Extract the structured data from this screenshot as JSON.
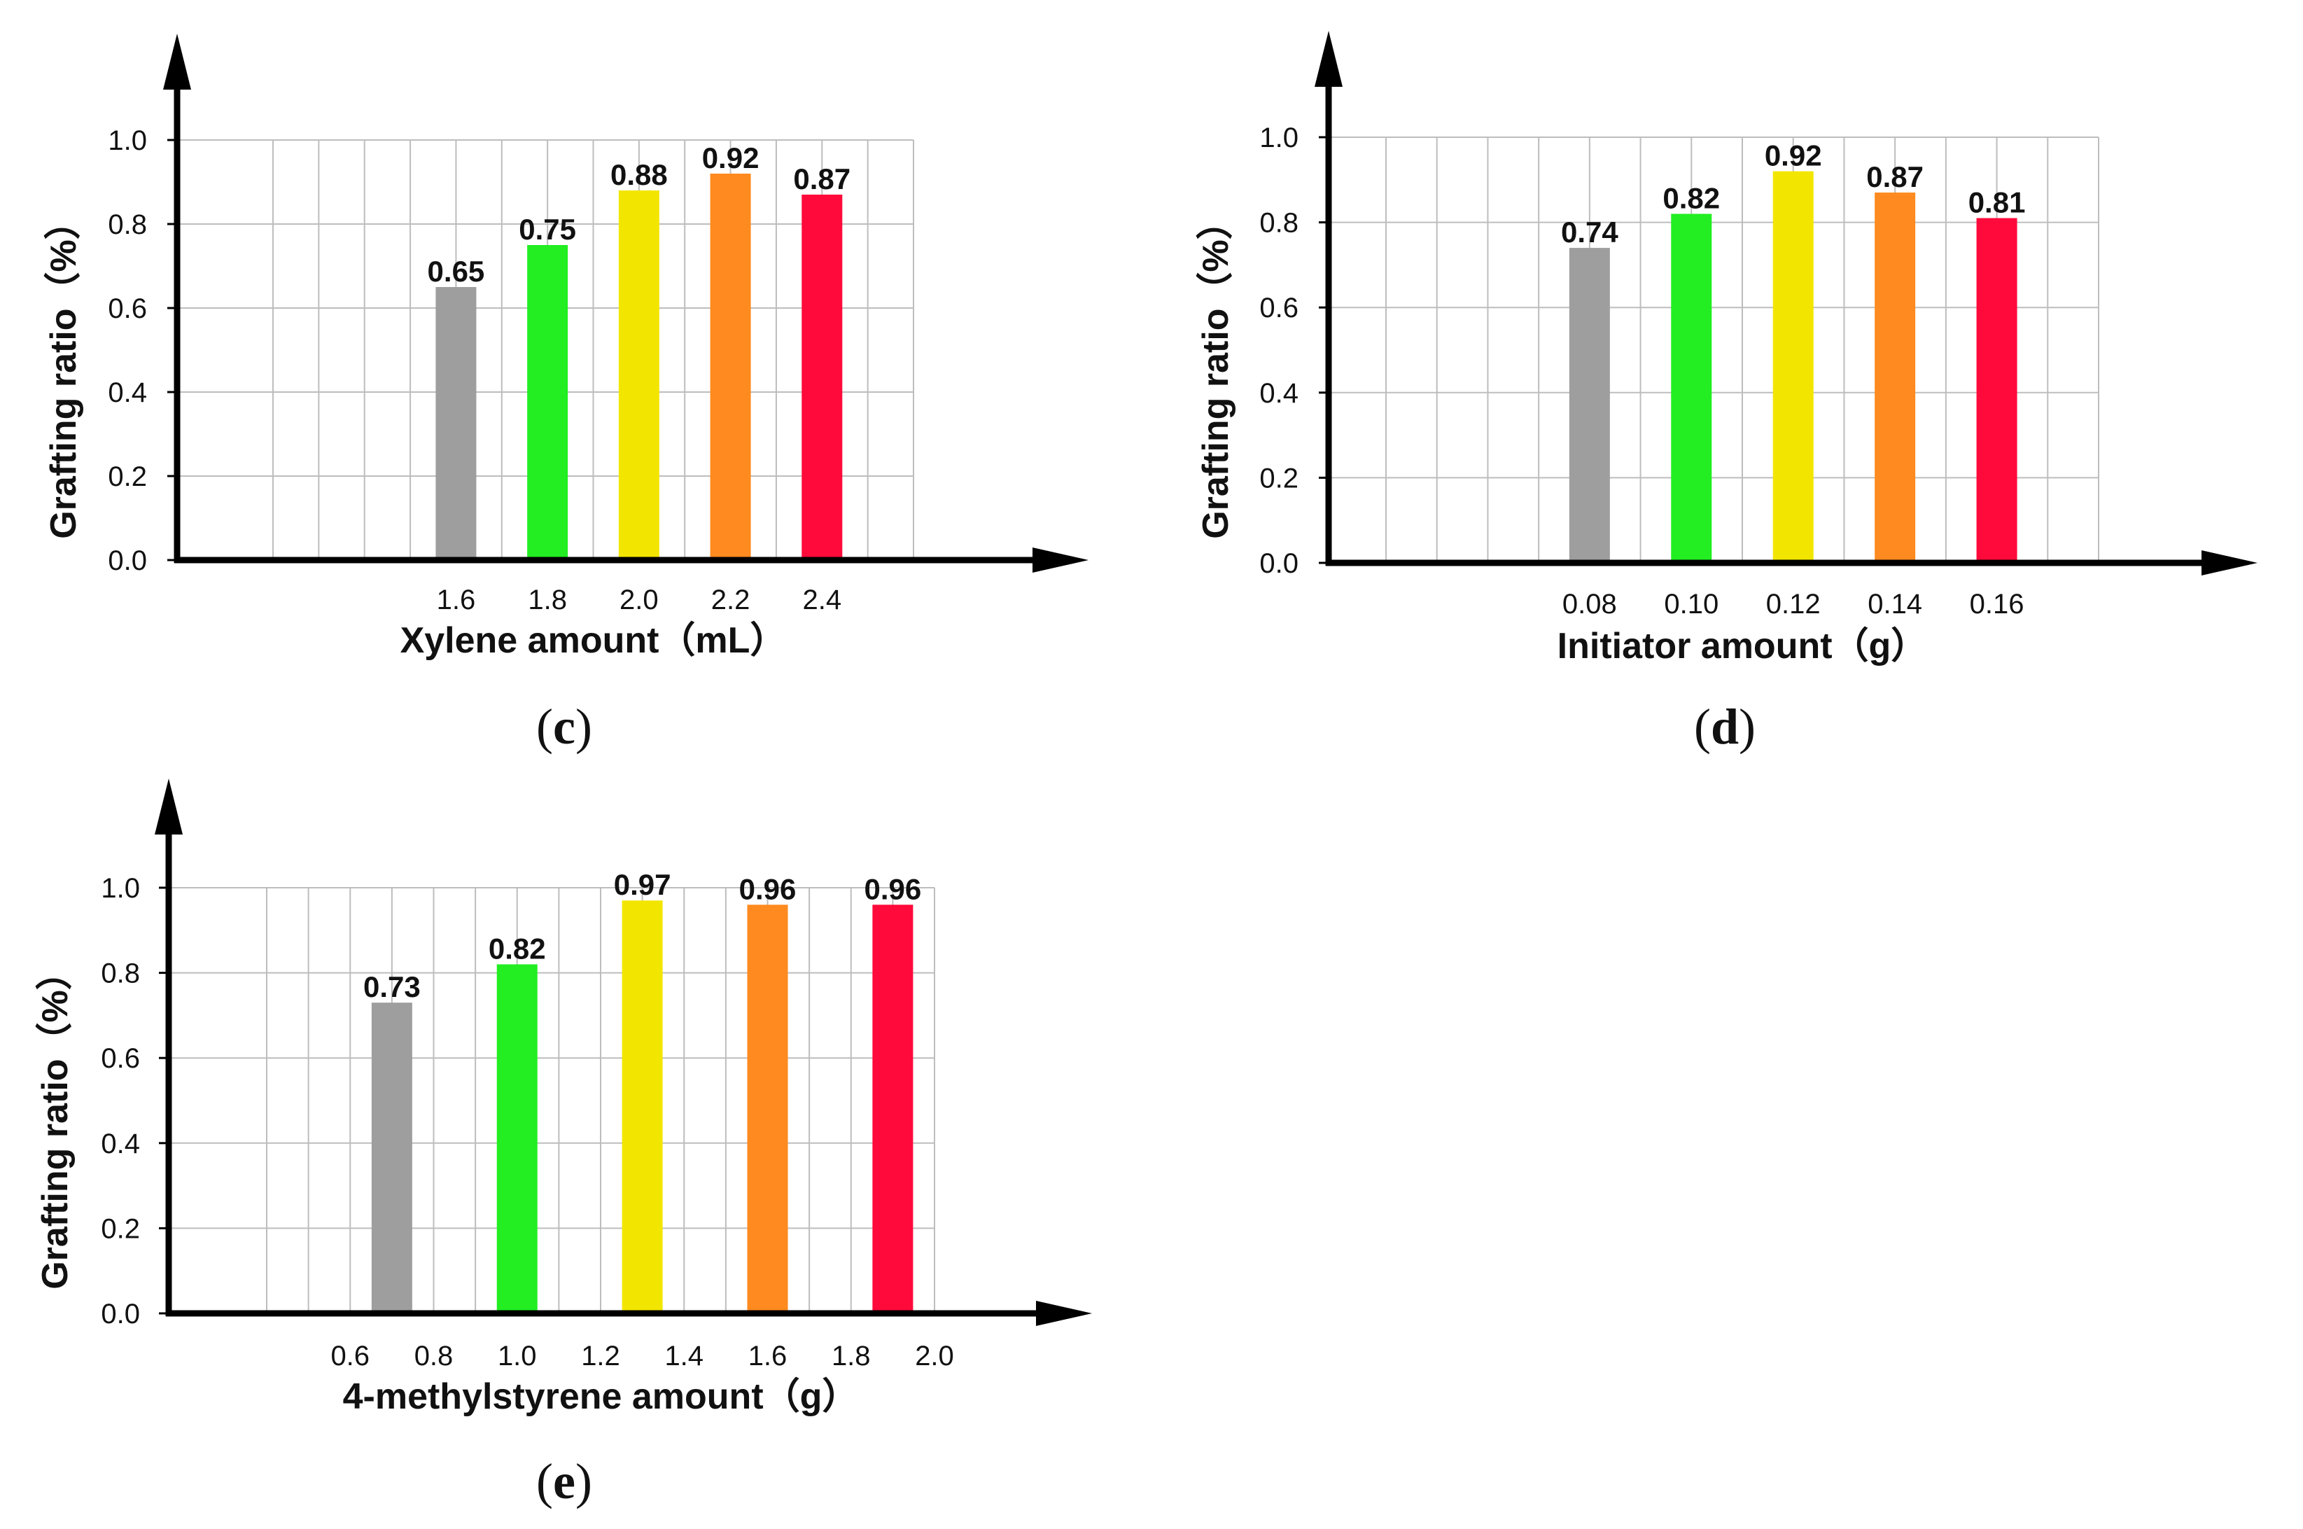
{
  "chart_data": [
    {
      "panel": "c",
      "type": "bar",
      "ylabel": "Grafting ratio（%）",
      "xlabel": "Xylene amount（mL）",
      "ylim": [
        0,
        1.0
      ],
      "yticks": [
        "0.0",
        "0.2",
        "0.4",
        "0.6",
        "0.8",
        "1.0"
      ],
      "xticks": [
        "1.6",
        "1.8",
        "2.0",
        "2.2",
        "2.4"
      ],
      "categories": [
        "1.6",
        "1.8",
        "2.0",
        "2.2",
        "2.4"
      ],
      "values": [
        0.65,
        0.75,
        0.88,
        0.92,
        0.87
      ],
      "value_labels": [
        "0.65",
        "0.75",
        "0.88",
        "0.92",
        "0.87"
      ],
      "colors": [
        "#9e9e9e",
        "#22ee22",
        "#f2e600",
        "#ff8a1f",
        "#ff0a3a"
      ],
      "grid": true
    },
    {
      "panel": "d",
      "type": "bar",
      "ylabel": "Grafting ratio（%）",
      "xlabel": "Initiator amount（g）",
      "ylim": [
        0,
        1.0
      ],
      "yticks": [
        "0.0",
        "0.2",
        "0.4",
        "0.6",
        "0.8",
        "1.0"
      ],
      "xticks": [
        "0.08",
        "0.10",
        "0.12",
        "0.14",
        "0.16"
      ],
      "categories": [
        "0.08",
        "0.10",
        "0.12",
        "0.14",
        "0.16"
      ],
      "values": [
        0.74,
        0.82,
        0.92,
        0.87,
        0.81
      ],
      "value_labels": [
        "0.74",
        "0.82",
        "0.92",
        "0.87",
        "0.81"
      ],
      "colors": [
        "#9e9e9e",
        "#22ee22",
        "#f2e600",
        "#ff8a1f",
        "#ff0a3a"
      ],
      "grid": true
    },
    {
      "panel": "e",
      "type": "bar",
      "ylabel": "Grafting ratio（%）",
      "xlabel": "4-methylstyrene amount（g）",
      "ylim": [
        0,
        1.0
      ],
      "yticks": [
        "0.0",
        "0.2",
        "0.4",
        "0.6",
        "0.8",
        "1.0"
      ],
      "xticks": [
        "0.6",
        "0.8",
        "1.0",
        "1.2",
        "1.4",
        "1.6",
        "1.8",
        "2.0"
      ],
      "categories": [
        "0.7",
        "1.0",
        "1.3",
        "1.6",
        "1.9"
      ],
      "values": [
        0.73,
        0.82,
        0.97,
        0.96,
        0.96
      ],
      "value_labels": [
        "0.73",
        "0.82",
        "0.97",
        "0.96",
        "0.96"
      ],
      "colors": [
        "#9e9e9e",
        "#22ee22",
        "#f2e600",
        "#ff8a1f",
        "#ff0a3a"
      ],
      "grid": true
    }
  ],
  "panel_labels": [
    "(c)",
    "(d)",
    "(e)"
  ],
  "panel_letters": [
    "c",
    "d",
    "e"
  ]
}
